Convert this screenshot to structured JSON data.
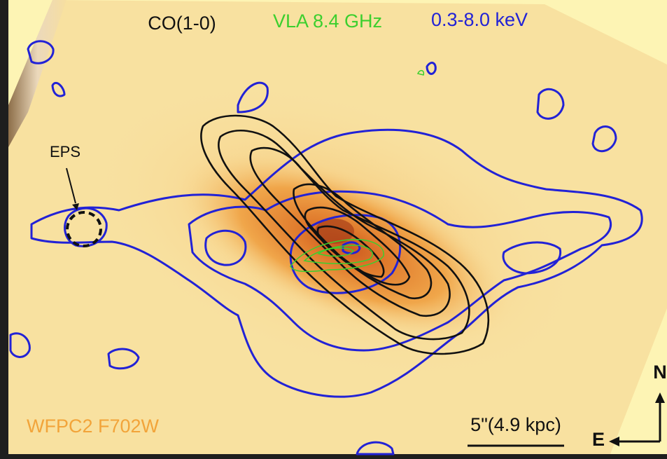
{
  "legend": [
    "CO(1-0)",
    "VLA 8.4 GHz",
    "0.3-8.0 keV"
  ],
  "source_label": "EPS",
  "filter_label": "WFPC2 F702W",
  "scale_bar": "5\"(4.9 kpc)",
  "compass": {
    "north": "N",
    "east": "E"
  }
}
